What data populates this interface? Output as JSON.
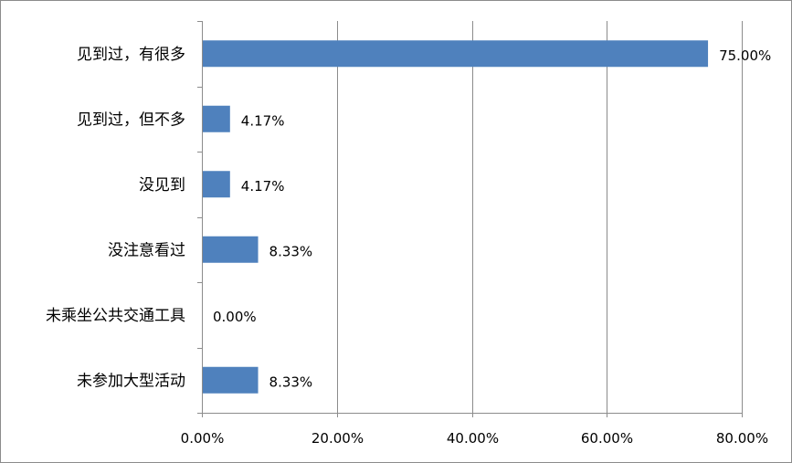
{
  "chart_data": {
    "type": "bar",
    "orientation": "horizontal",
    "categories": [
      "见到过，有很多",
      "见到过，但不多",
      "没见到",
      "没注意看过",
      "未乘坐公共交通工具",
      "未参加大型活动"
    ],
    "values": [
      75.0,
      4.17,
      4.17,
      8.33,
      0.0,
      8.33
    ],
    "value_labels": [
      "75.00%",
      "4.17%",
      "4.17%",
      "8.33%",
      "0.00%",
      "8.33%"
    ],
    "xlim": [
      0,
      80
    ],
    "x_ticks": [
      0,
      20,
      40,
      60,
      80
    ],
    "x_tick_labels": [
      "0.00%",
      "20.00%",
      "40.00%",
      "60.00%",
      "80.00%"
    ],
    "bar_color": "#4f81bd",
    "grid": "vertical major gridlines",
    "legend": "none"
  }
}
